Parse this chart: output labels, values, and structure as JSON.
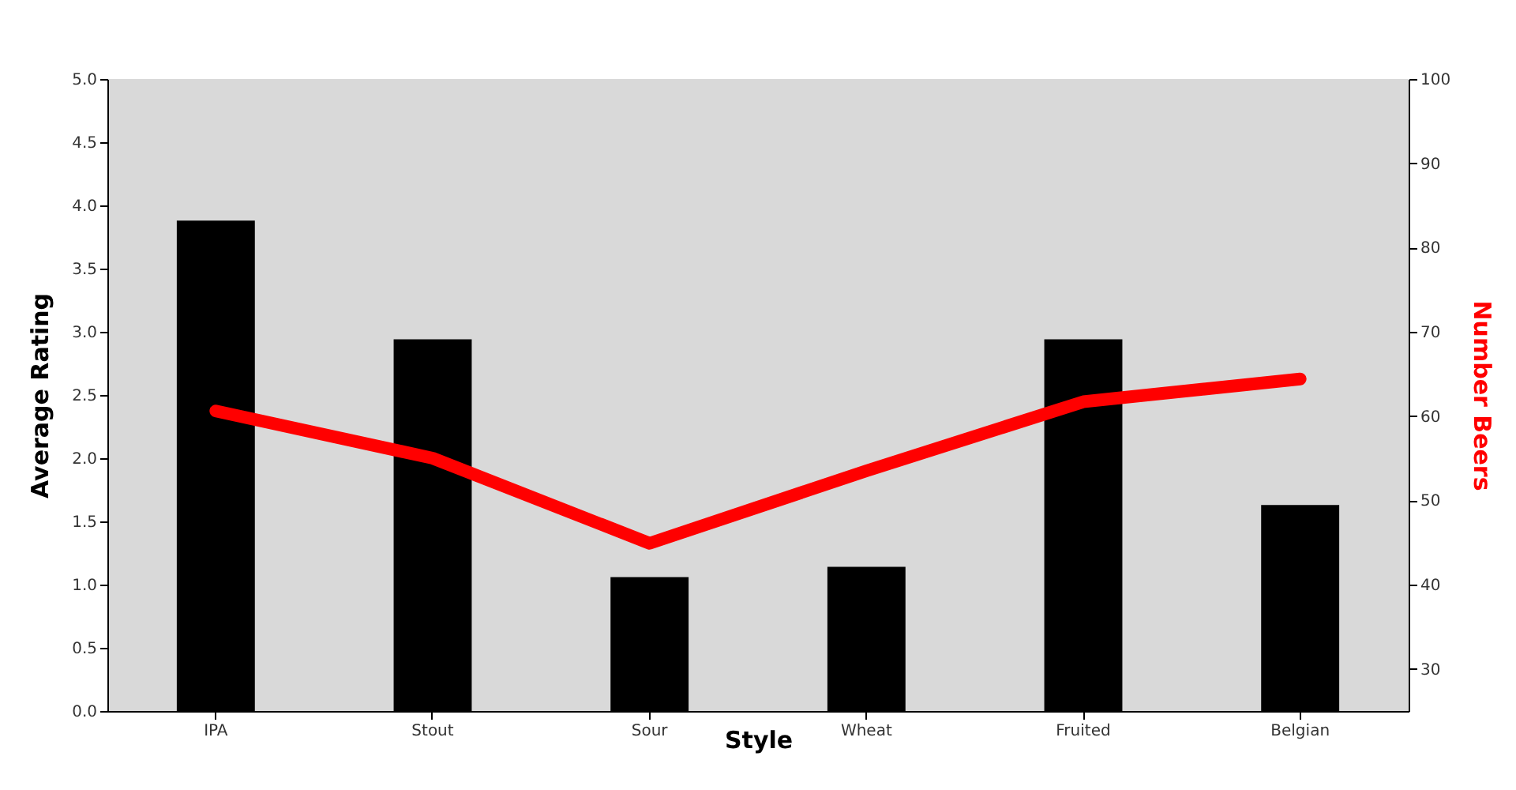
{
  "chart_data": {
    "type": "bar",
    "xlabel": "Style",
    "ylabel": "Average Rating",
    "y2label": "Number Beers",
    "categories": [
      "IPA",
      "Stout",
      "Sour",
      "Wheat",
      "Fruited",
      "Belgian"
    ],
    "series": [
      {
        "color": "#000000",
        "values": [
          3.88,
          2.94,
          1.06,
          1.14,
          2.94,
          1.63
        ]
      },
      {
        "type": "line",
        "axis": "y2",
        "color": "#ff0000",
        "values": [
          60.6,
          55.0,
          44.9,
          53.5,
          61.7,
          64.4
        ]
      }
    ],
    "ylim": [
      0,
      5
    ],
    "yticks": [
      {
        "value": 0,
        "label": "0.0"
      },
      {
        "value": 0.5,
        "label": "0.5"
      },
      {
        "value": 1,
        "label": "1.0"
      },
      {
        "value": 1.5,
        "label": "1.5"
      },
      {
        "value": 2,
        "label": "2.0"
      },
      {
        "value": 2.5,
        "label": "2.5"
      },
      {
        "value": 3,
        "label": "3.0"
      },
      {
        "value": 3.5,
        "label": "3.5"
      },
      {
        "value": 4,
        "label": "4.0"
      },
      {
        "value": 4.5,
        "label": "4.5"
      },
      {
        "value": 5,
        "label": "5.0"
      }
    ],
    "y2lim": [
      25,
      100
    ],
    "y2ticks": [
      30,
      40,
      50,
      60,
      70,
      80,
      90,
      100
    ],
    "grid": false
  }
}
